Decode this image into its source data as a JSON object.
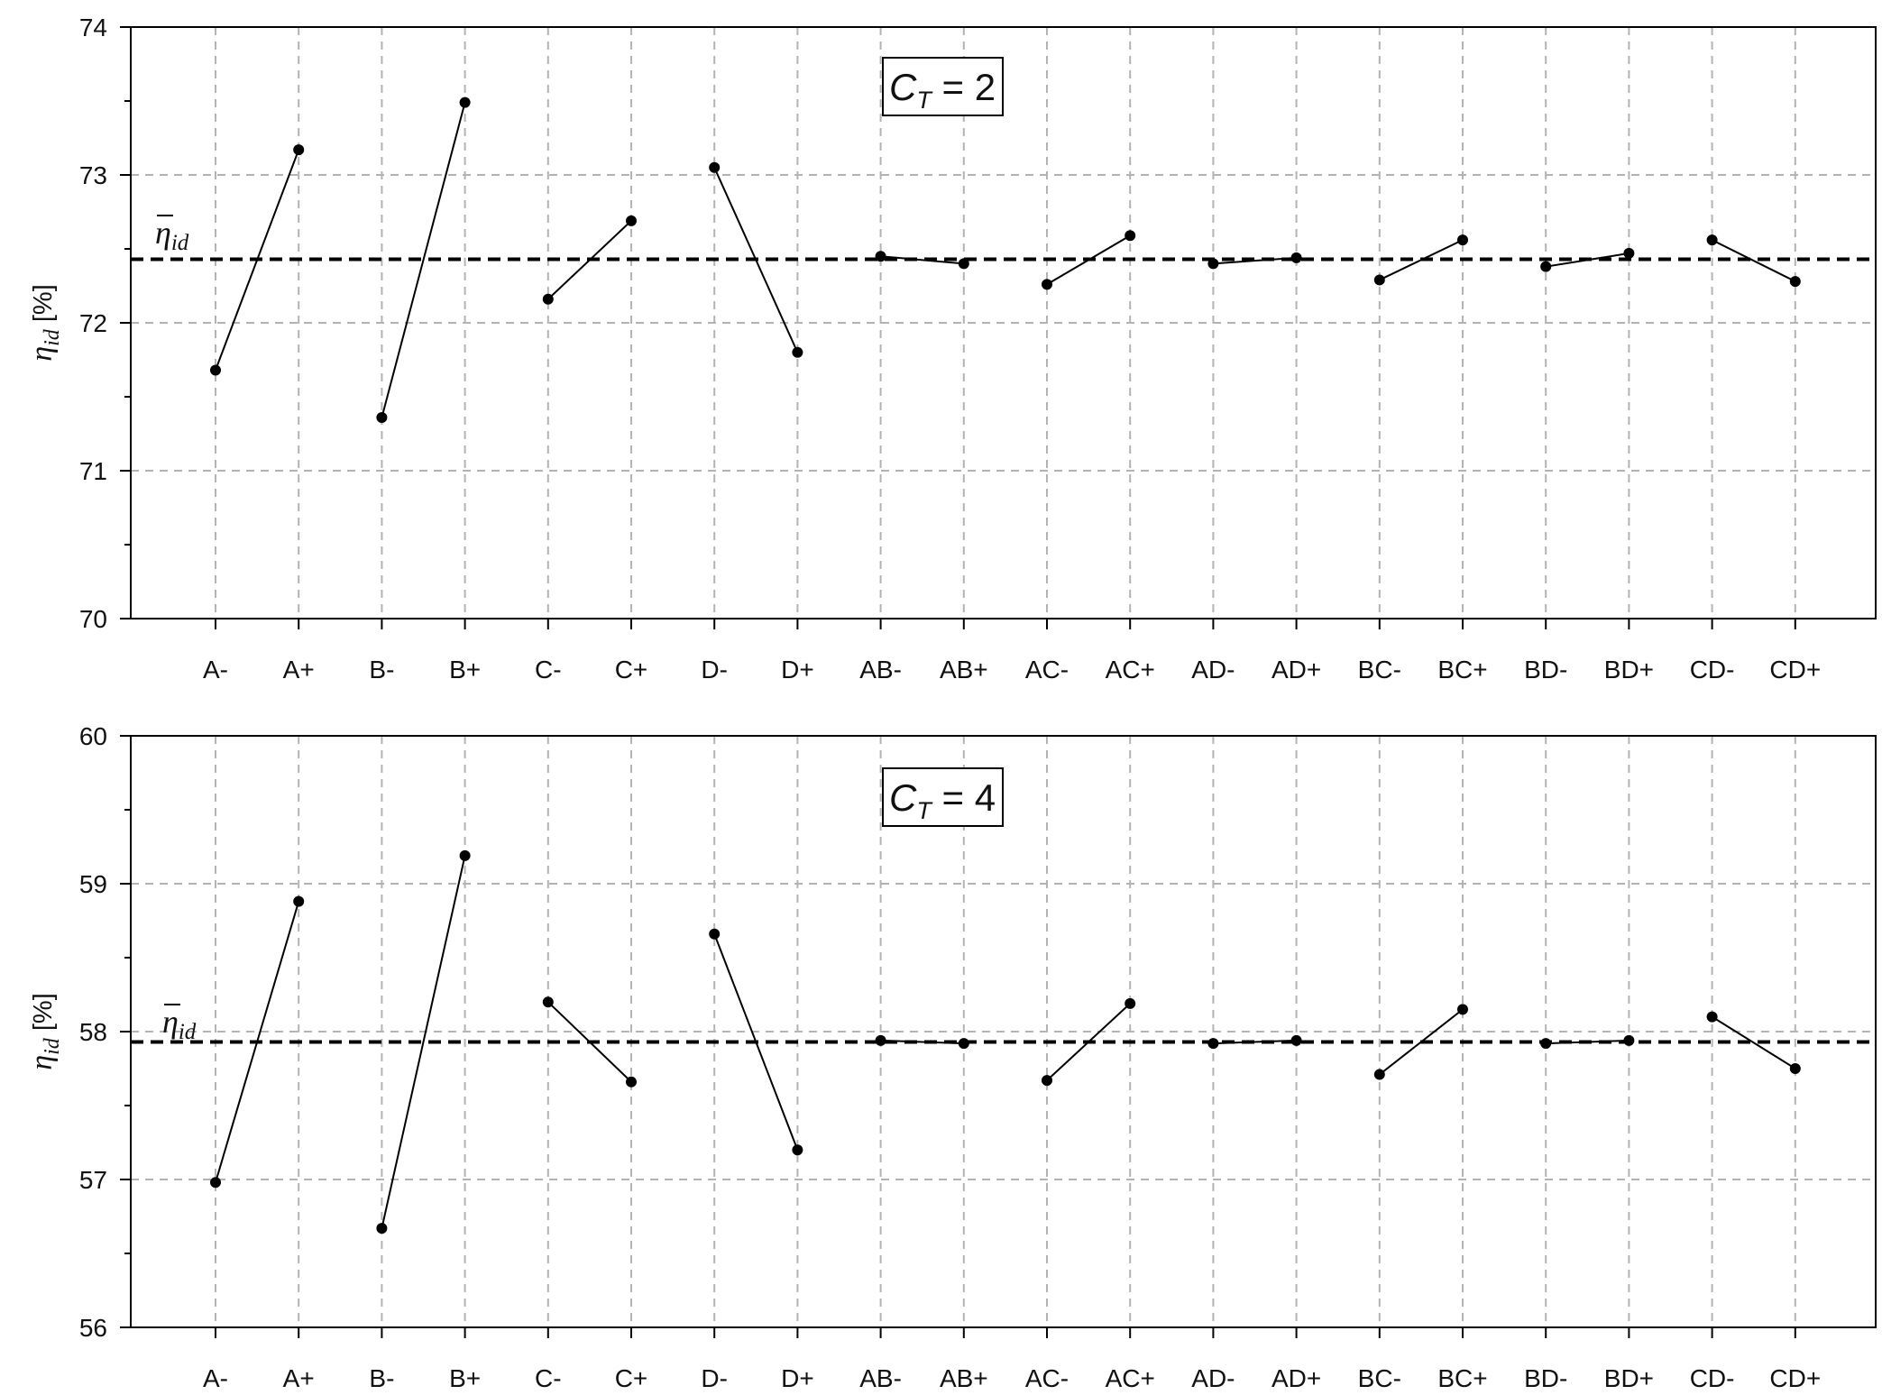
{
  "chart_data": [
    {
      "type": "line",
      "annotation": {
        "main": "C",
        "sub": "T",
        "rest": " = 2"
      },
      "ylabel": {
        "main": "η",
        "sub": "id",
        "unit": " [%]"
      },
      "mean_label": {
        "main": "η",
        "sub": "id"
      },
      "categories": [
        "A-",
        "A+",
        "B-",
        "B+",
        "C-",
        "C+",
        "D-",
        "D+",
        "AB-",
        "AB+",
        "AC-",
        "AC+",
        "AD-",
        "AD+",
        "BC-",
        "BC+",
        "BD-",
        "BD+",
        "CD-",
        "CD+"
      ],
      "values": [
        71.68,
        73.17,
        71.36,
        73.49,
        72.16,
        72.69,
        73.05,
        71.8,
        72.45,
        72.4,
        72.26,
        72.59,
        72.4,
        72.44,
        72.29,
        72.56,
        72.38,
        72.47,
        72.56,
        72.28
      ],
      "mean": 72.43,
      "ylim": [
        70,
        74
      ],
      "yticks": [
        70,
        71,
        72,
        73,
        74
      ],
      "grid": true
    },
    {
      "type": "line",
      "annotation": {
        "main": "C",
        "sub": "T",
        "rest": " = 4"
      },
      "ylabel": {
        "main": "η",
        "sub": "id",
        "unit": " [%]"
      },
      "mean_label": {
        "main": "η",
        "sub": "id"
      },
      "categories": [
        "A-",
        "A+",
        "B-",
        "B+",
        "C-",
        "C+",
        "D-",
        "D+",
        "AB-",
        "AB+",
        "AC-",
        "AC+",
        "AD-",
        "AD+",
        "BC-",
        "BC+",
        "BD-",
        "BD+",
        "CD-",
        "CD+"
      ],
      "values": [
        56.98,
        58.88,
        56.67,
        59.19,
        58.2,
        57.66,
        58.66,
        57.2,
        57.94,
        57.92,
        57.67,
        58.19,
        57.92,
        57.94,
        57.71,
        58.15,
        57.92,
        57.94,
        58.1,
        57.75
      ],
      "mean": 57.93,
      "ylim": [
        56,
        60
      ],
      "yticks": [
        56,
        57,
        58,
        59,
        60
      ],
      "grid": true
    }
  ],
  "style": {
    "line_color": "#000000",
    "grid_color": "#b3b3b3",
    "mean_line_color": "#000000"
  }
}
